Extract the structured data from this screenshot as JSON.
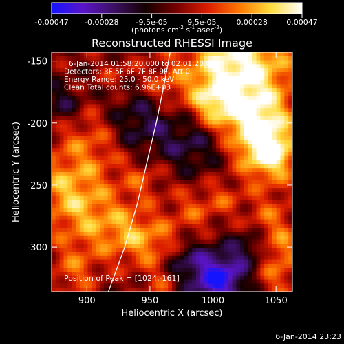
{
  "colorbar": {
    "tick_labels": [
      "-0.00047",
      "-0.00028",
      "-9.5e-05",
      "9.5e-05",
      "0.00028",
      "0.00047"
    ],
    "unit_main": "(photons cm",
    "unit_sup1": "-2",
    "unit_mid": " s",
    "unit_sup2": "-1",
    "unit_end": " asec",
    "unit_sup3": "-2",
    "unit_close": ")",
    "colors": [
      "#1414ff",
      "#5a14c8",
      "#3c1064",
      "#140000",
      "#780000",
      "#dc1e00",
      "#ff7800",
      "#ffdc3c",
      "#ffffff"
    ]
  },
  "chart_data": {
    "type": "heatmap",
    "title": "Reconstructed RHESSI Image",
    "xlabel": "Heliocentric X (arcsec)",
    "ylabel": "Heliocentric Y (arcsec)",
    "xlim": [
      872,
      1063
    ],
    "ylim": [
      -336,
      -143
    ],
    "xticks": [
      900,
      950,
      1000,
      1050
    ],
    "yticks": [
      -150,
      -200,
      -250,
      -300
    ],
    "value_range": [
      -0.00047,
      0.00047
    ],
    "info_lines": [
      "6-Jan-2014 01:58:20.000 to 02:01:20.000",
      "Detectors: 3F 5F 6F 7F 8F 9F, Att 0",
      "Energy Range: 25.0 - 50.0 keV",
      "Clean     Total counts: 6.96E+03"
    ],
    "peak_label": "Position of Peak = [1024,-161]",
    "peak": [
      1024,
      -161
    ],
    "limb_curve": [
      [
        917,
        -336
      ],
      [
        930,
        -300
      ],
      [
        940,
        -265
      ],
      [
        948,
        -230
      ],
      [
        955,
        -200
      ],
      [
        961,
        -170
      ],
      [
        966,
        -143
      ]
    ],
    "emission_regions": [
      {
        "x": 1020,
        "y": -155,
        "sigma": 30,
        "amp": 0.00047
      },
      {
        "x": 1035,
        "y": -200,
        "sigma": 18,
        "amp": 0.0003
      },
      {
        "x": 1045,
        "y": -225,
        "sigma": 16,
        "amp": 0.00042
      },
      {
        "x": 1000,
        "y": -185,
        "sigma": 14,
        "amp": 0.00022
      },
      {
        "x": 905,
        "y": -215,
        "sigma": 22,
        "amp": 0.0002
      },
      {
        "x": 880,
        "y": -250,
        "sigma": 18,
        "amp": 0.00018
      },
      {
        "x": 900,
        "y": -275,
        "sigma": 22,
        "amp": 0.00024
      },
      {
        "x": 935,
        "y": -290,
        "sigma": 16,
        "amp": 0.00022
      },
      {
        "x": 960,
        "y": -300,
        "sigma": 14,
        "amp": 0.00018
      },
      {
        "x": 985,
        "y": -270,
        "sigma": 14,
        "amp": 0.00016
      },
      {
        "x": 945,
        "y": -245,
        "sigma": 12,
        "amp": 0.00014
      },
      {
        "x": 890,
        "y": -320,
        "sigma": 14,
        "amp": 0.00016
      },
      {
        "x": 1045,
        "y": -275,
        "sigma": 14,
        "amp": 0.00016
      },
      {
        "x": 1055,
        "y": -300,
        "sigma": 12,
        "amp": 0.00018
      },
      {
        "x": 1050,
        "y": -325,
        "sigma": 14,
        "amp": 0.00016
      },
      {
        "x": 960,
        "y": -330,
        "sigma": 10,
        "amp": 0.00012
      },
      {
        "x": 1010,
        "y": -260,
        "sigma": 10,
        "amp": 0.00012
      },
      {
        "x": 960,
        "y": -170,
        "sigma": 12,
        "amp": 0.00014
      },
      {
        "x": 925,
        "y": -160,
        "sigma": 10,
        "amp": 0.0001
      },
      {
        "x": 940,
        "y": -200,
        "sigma": 20,
        "amp": -0.00022
      },
      {
        "x": 985,
        "y": -215,
        "sigma": 18,
        "amp": -0.0002
      },
      {
        "x": 1005,
        "y": -325,
        "sigma": 16,
        "amp": -0.00045
      },
      {
        "x": 975,
        "y": -310,
        "sigma": 12,
        "amp": -0.0002
      },
      {
        "x": 880,
        "y": -185,
        "sigma": 12,
        "amp": -0.00018
      },
      {
        "x": 1030,
        "y": -300,
        "sigma": 10,
        "amp": -0.00016
      }
    ]
  },
  "footer": {
    "timestamp": "6-Jan-2014 23:23"
  }
}
